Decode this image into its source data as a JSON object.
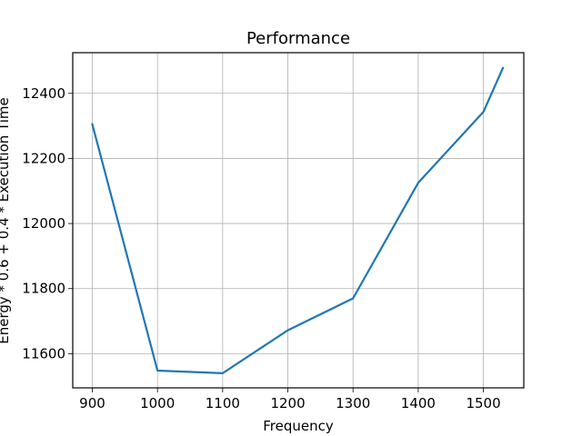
{
  "chart_data": {
    "type": "line",
    "title": "Performance",
    "xlabel": "Frequency",
    "ylabel": "Energy * 0.6 + 0.4 * Execution Time",
    "xlim": [
      870,
      1562
    ],
    "ylim": [
      11495,
      12525
    ],
    "xticks": [
      900,
      1000,
      1100,
      1200,
      1300,
      1400,
      1500
    ],
    "yticks": [
      11600,
      11800,
      12000,
      12200,
      12400
    ],
    "grid": true,
    "series": [
      {
        "color": "#1f77b4",
        "x": [
          900,
          1000,
          1100,
          1200,
          1300,
          1400,
          1500,
          1530
        ],
        "y": [
          12305,
          11548,
          11540,
          11672,
          11770,
          12125,
          12343,
          12478
        ]
      }
    ]
  }
}
